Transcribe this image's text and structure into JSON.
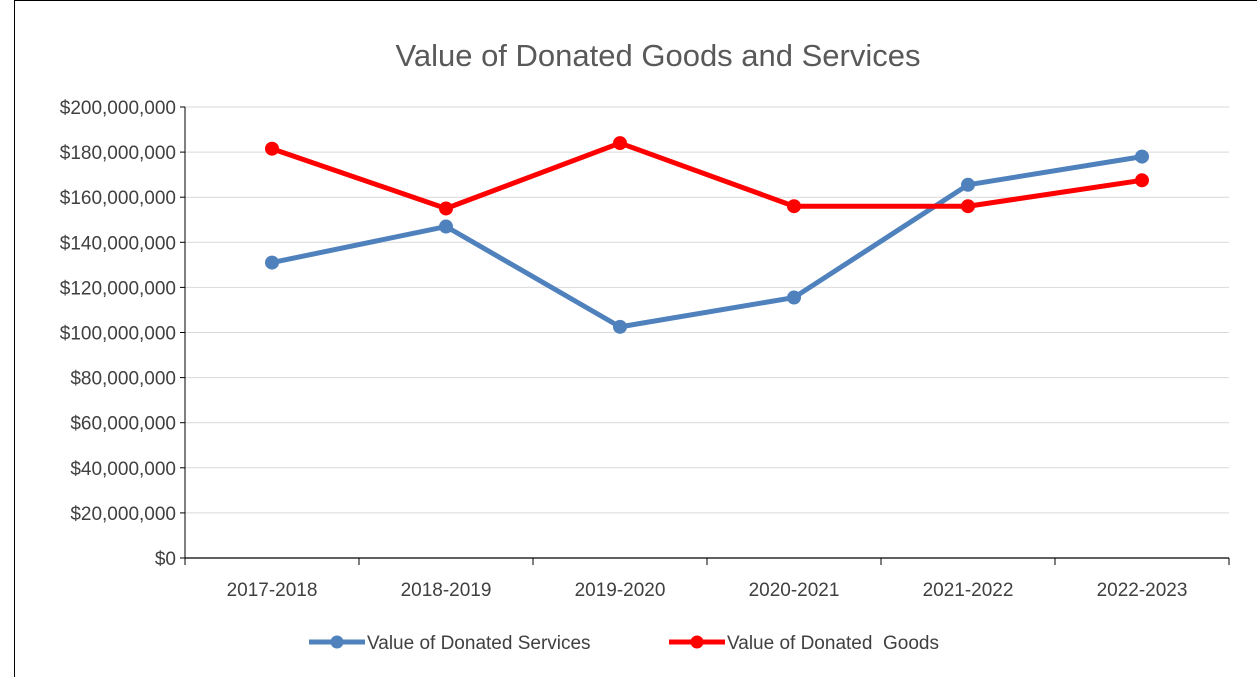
{
  "chart_data": {
    "type": "line",
    "title": "Value of Donated Goods and Services",
    "categories": [
      "2017-2018",
      "2018-2019",
      "2019-2020",
      "2020-2021",
      "2021-2022",
      "2022-2023"
    ],
    "ylim": [
      0,
      200000000
    ],
    "yticks": [
      0,
      20000000,
      40000000,
      60000000,
      80000000,
      100000000,
      120000000,
      140000000,
      160000000,
      180000000,
      200000000
    ],
    "ytick_labels": [
      "$0",
      "$20,000,000",
      "$40,000,000",
      "$60,000,000",
      "$80,000,000",
      "$100,000,000",
      "$120,000,000",
      "$140,000,000",
      "$160,000,000",
      "$180,000,000",
      "$200,000,000"
    ],
    "grid": true,
    "legend_position": "bottom",
    "series": [
      {
        "name": "Value of Donated Services",
        "color": "#4F81BD",
        "values": [
          131000000,
          147000000,
          102500000,
          115500000,
          165500000,
          178000000
        ]
      },
      {
        "name": "Value of Donated  Goods",
        "color": "#FF0000",
        "values": [
          181500000,
          155000000,
          184000000,
          156000000,
          156000000,
          167500000
        ]
      }
    ]
  }
}
